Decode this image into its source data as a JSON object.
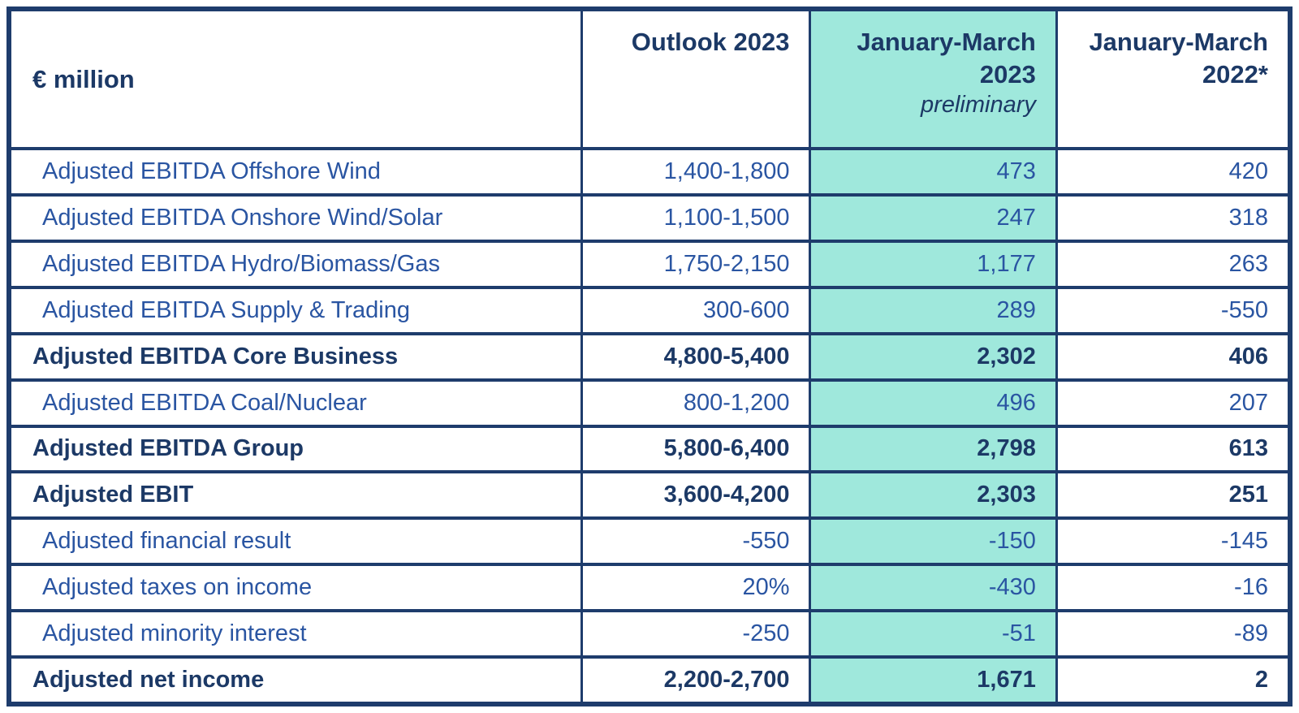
{
  "chart_data": {
    "type": "table",
    "unit_label": "€ million",
    "columns": [
      "Outlook 2023",
      "January-March 2023",
      "January-March 2022*"
    ],
    "column_subnotes": [
      "",
      "preliminary",
      ""
    ],
    "highlighted_column": "January-March 2023",
    "rows": [
      {
        "label": "Adjusted EBITDA Offshore Wind",
        "outlook_2023": "1,400-1,800",
        "jan_mar_2023": "473",
        "jan_mar_2022": "420",
        "bold": false
      },
      {
        "label": "Adjusted EBITDA Onshore Wind/Solar",
        "outlook_2023": "1,100-1,500",
        "jan_mar_2023": "247",
        "jan_mar_2022": "318",
        "bold": false
      },
      {
        "label": "Adjusted EBITDA Hydro/Biomass/Gas",
        "outlook_2023": "1,750-2,150",
        "jan_mar_2023": "1,177",
        "jan_mar_2022": "263",
        "bold": false
      },
      {
        "label": "Adjusted EBITDA Supply & Trading",
        "outlook_2023": "300-600",
        "jan_mar_2023": "289",
        "jan_mar_2022": "-550",
        "bold": false
      },
      {
        "label": "Adjusted EBITDA Core Business",
        "outlook_2023": "4,800-5,400",
        "jan_mar_2023": "2,302",
        "jan_mar_2022": "406",
        "bold": true
      },
      {
        "label": "Adjusted EBITDA Coal/Nuclear",
        "outlook_2023": "800-1,200",
        "jan_mar_2023": "496",
        "jan_mar_2022": "207",
        "bold": false
      },
      {
        "label": "Adjusted EBITDA Group",
        "outlook_2023": "5,800-6,400",
        "jan_mar_2023": "2,798",
        "jan_mar_2022": "613",
        "bold": true
      },
      {
        "label": "Adjusted EBIT",
        "outlook_2023": "3,600-4,200",
        "jan_mar_2023": "2,303",
        "jan_mar_2022": "251",
        "bold": true
      },
      {
        "label": "Adjusted financial result",
        "outlook_2023": "-550",
        "jan_mar_2023": "-150",
        "jan_mar_2022": "-145",
        "bold": false
      },
      {
        "label": "Adjusted taxes on income",
        "outlook_2023": "20%",
        "jan_mar_2023": "-430",
        "jan_mar_2022": "-16",
        "bold": false
      },
      {
        "label": "Adjusted minority interest",
        "outlook_2023": "-250",
        "jan_mar_2023": "-51",
        "jan_mar_2022": "-89",
        "bold": false
      },
      {
        "label": "Adjusted net income",
        "outlook_2023": "2,200-2,700",
        "jan_mar_2023": "1,671",
        "jan_mar_2022": "2",
        "bold": true
      }
    ]
  },
  "colors": {
    "border_navy": "#1e3c6c",
    "text_navy_bold": "#1c3966",
    "text_blue_regular": "#2a55a2",
    "highlight_teal": "#9fe8dc",
    "background": "#ffffff"
  }
}
